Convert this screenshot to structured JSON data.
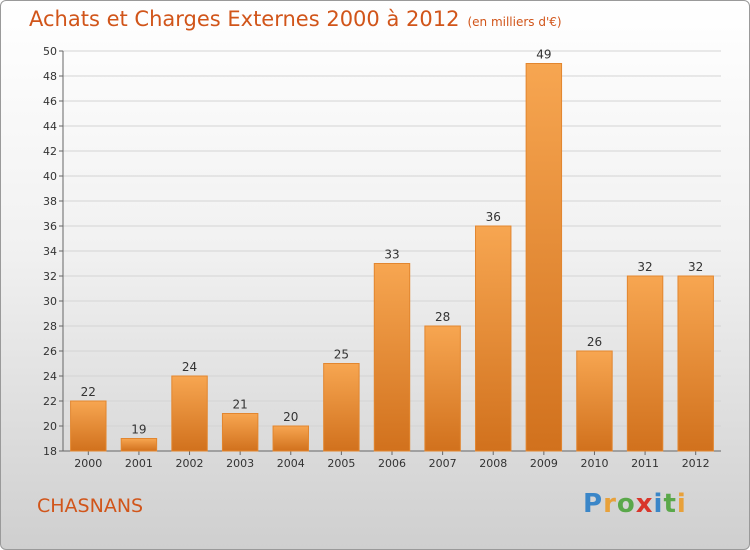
{
  "header": {
    "title": "Achats et Charges Externes 2000 à 2012",
    "unit": "(en milliers d'€)"
  },
  "location": "CHASNANS",
  "logo": {
    "letters": [
      "P",
      "r",
      "o",
      "x",
      "i",
      "t",
      "i"
    ],
    "colors": [
      "#3a86c8",
      "#e8a13a",
      "#5aa84a",
      "#d9362b",
      "#3a86c8",
      "#5aa84a",
      "#e8a13a"
    ]
  },
  "chart_data": {
    "type": "bar",
    "title": "Achats et Charges Externes 2000 à 2012",
    "subtitle": "(en milliers d'€)",
    "categories": [
      "2000",
      "2001",
      "2002",
      "2003",
      "2004",
      "2005",
      "2006",
      "2007",
      "2008",
      "2009",
      "2010",
      "2011",
      "2012"
    ],
    "values": [
      22,
      19,
      24,
      21,
      20,
      25,
      33,
      28,
      36,
      49,
      26,
      32,
      32
    ],
    "ylim": [
      18,
      50
    ],
    "yticks": [
      18,
      20,
      22,
      24,
      26,
      28,
      30,
      32,
      34,
      36,
      38,
      40,
      42,
      44,
      46,
      48,
      50
    ],
    "grid": true,
    "bar_color": "#f0a04b",
    "bar_color_dark": "#d2741e"
  }
}
